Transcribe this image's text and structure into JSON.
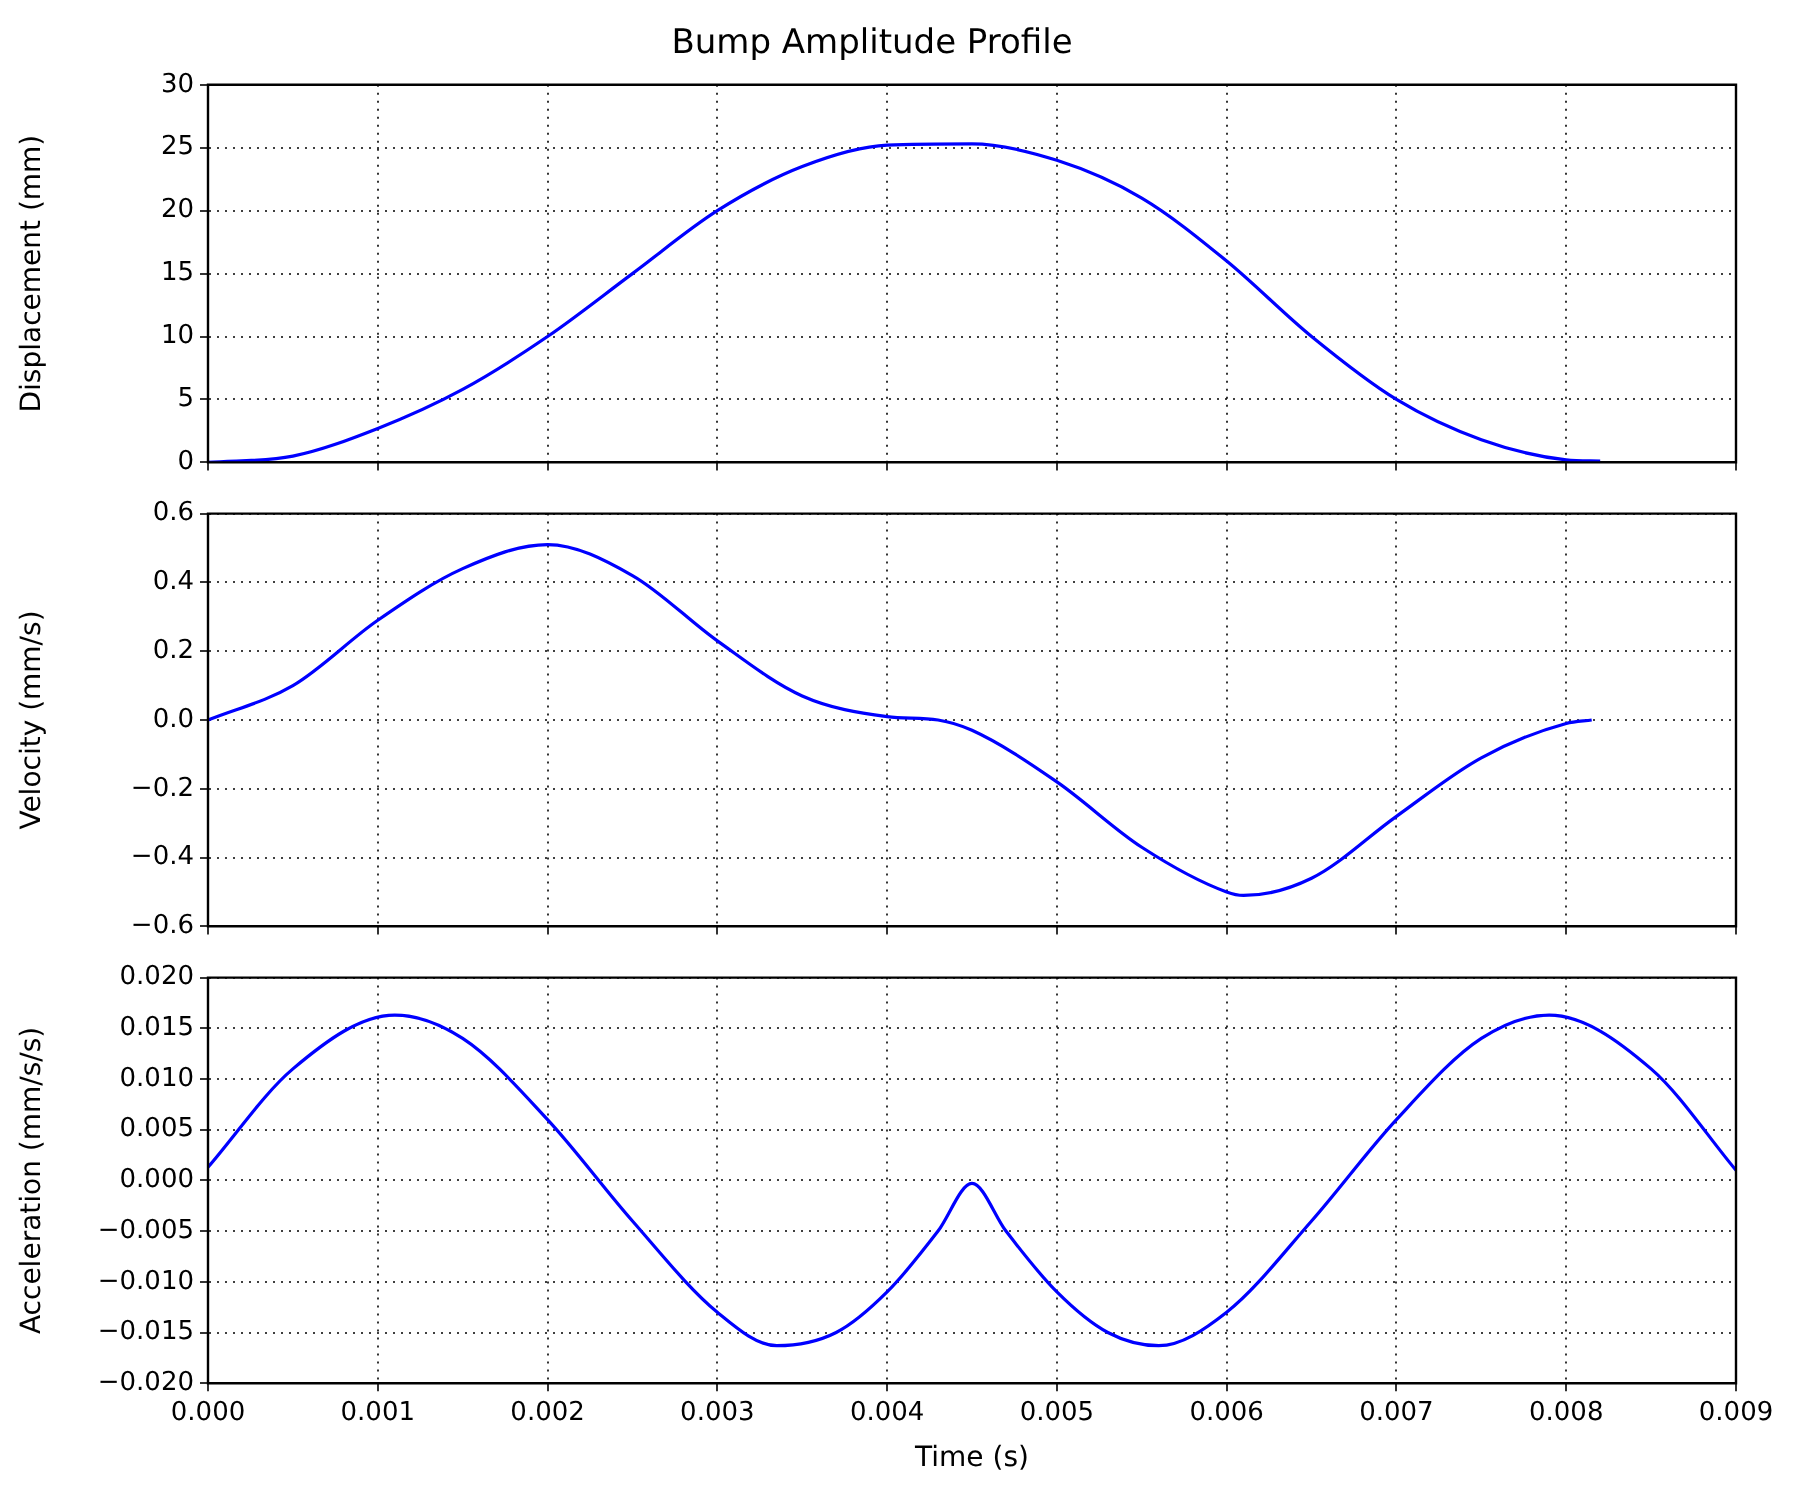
{
  "chart_data": [
    {
      "type": "line",
      "title": "Bump Amplitude Profile",
      "ylabel": "Displacement (mm)",
      "grid": true,
      "marker": "none",
      "line_style": "solid",
      "tick_labels": "y",
      "x": [
        0,
        0.0005,
        0.001,
        0.0015,
        0.002,
        0.0025,
        0.003,
        0.0035,
        0.004,
        0.0045,
        0.005,
        0.0055,
        0.006,
        0.0065,
        0.007,
        0.0075,
        0.008,
        0.0082
      ],
      "series": [
        {
          "color": "#0000ff",
          "values": [
            0,
            0.5,
            2.7,
            5.8,
            10,
            15,
            20,
            23.5,
            25.2,
            25.3,
            24,
            21,
            16,
            10,
            5,
            1.8,
            0.2,
            0.1
          ]
        }
      ],
      "xlim": [
        0,
        0.009
      ],
      "xticks": [
        {
          "value": 0,
          "label": null
        },
        {
          "value": 0.001,
          "label": null
        },
        {
          "value": 0.002,
          "label": null
        },
        {
          "value": 0.003,
          "label": null
        },
        {
          "value": 0.004,
          "label": null
        },
        {
          "value": 0.005,
          "label": null
        },
        {
          "value": 0.006,
          "label": null
        },
        {
          "value": 0.007,
          "label": null
        },
        {
          "value": 0.008,
          "label": null
        },
        {
          "value": 0.009,
          "label": null
        }
      ],
      "ylim": [
        0,
        30
      ],
      "yticks": [
        0,
        5,
        10,
        15,
        20,
        25,
        30
      ]
    },
    {
      "type": "line",
      "ylabel": "Velocity (mm/s)",
      "grid": true,
      "marker": "none",
      "line_style": "solid",
      "tick_labels": "y",
      "x": [
        0,
        0.0005,
        0.001,
        0.0015,
        0.002,
        0.0025,
        0.003,
        0.0035,
        0.004,
        0.0043,
        0.0045,
        0.005,
        0.0055,
        0.006,
        0.0061,
        0.0065,
        0.007,
        0.0075,
        0.008,
        0.00815
      ],
      "series": [
        {
          "color": "#0000ff",
          "values": [
            0,
            0.1,
            0.29,
            0.44,
            0.51,
            0.42,
            0.23,
            0.07,
            0.01,
            0,
            -0.03,
            -0.18,
            -0.37,
            -0.5,
            -0.51,
            -0.46,
            -0.28,
            -0.11,
            -0.01,
            0
          ]
        }
      ],
      "xlim": [
        0,
        0.009
      ],
      "xticks": [
        {
          "value": 0,
          "label": null
        },
        {
          "value": 0.001,
          "label": null
        },
        {
          "value": 0.002,
          "label": null
        },
        {
          "value": 0.003,
          "label": null
        },
        {
          "value": 0.004,
          "label": null
        },
        {
          "value": 0.005,
          "label": null
        },
        {
          "value": 0.006,
          "label": null
        },
        {
          "value": 0.007,
          "label": null
        },
        {
          "value": 0.008,
          "label": null
        },
        {
          "value": 0.009,
          "label": null
        }
      ],
      "ylim": [
        -0.6,
        0.6
      ],
      "yticks": [
        {
          "value": -0.6,
          "label": "−0.6"
        },
        {
          "value": -0.4,
          "label": "−0.4"
        },
        {
          "value": -0.2,
          "label": "−0.2"
        },
        {
          "value": 0,
          "label": "0.0"
        },
        {
          "value": 0.2,
          "label": "0.2"
        },
        {
          "value": 0.4,
          "label": "0.4"
        },
        {
          "value": 0.6,
          "label": "0.6"
        }
      ]
    },
    {
      "type": "line",
      "xlabel": "Time (s)",
      "ylabel": "Acceleration (mm/s/s)",
      "grid": true,
      "marker": "none",
      "line_style": "solid",
      "x": [
        0,
        0.0005,
        0.0011,
        0.0015,
        0.002,
        0.0025,
        0.003,
        0.00335,
        0.0037,
        0.004,
        0.0043,
        0.0045,
        0.0047,
        0.005,
        0.0053,
        0.0056,
        0.006,
        0.0065,
        0.007,
        0.0075,
        0.0079,
        0.0085,
        0.009
      ],
      "series": [
        {
          "color": "#0000ff",
          "values": [
            0.0013,
            0.011,
            0.0163,
            0.014,
            0.006,
            -0.004,
            -0.013,
            -0.0163,
            -0.015,
            -0.011,
            -0.005,
            -0.0003,
            -0.005,
            -0.011,
            -0.015,
            -0.0163,
            -0.013,
            -0.004,
            0.006,
            0.014,
            0.0163,
            0.011,
            0.001
          ]
        }
      ],
      "xlim": [
        0,
        0.009
      ],
      "xticks": [
        {
          "value": 0,
          "label": "0.000"
        },
        {
          "value": 0.001,
          "label": "0.001"
        },
        {
          "value": 0.002,
          "label": "0.002"
        },
        {
          "value": 0.003,
          "label": "0.003"
        },
        {
          "value": 0.004,
          "label": "0.004"
        },
        {
          "value": 0.005,
          "label": "0.005"
        },
        {
          "value": 0.006,
          "label": "0.006"
        },
        {
          "value": 0.007,
          "label": "0.007"
        },
        {
          "value": 0.008,
          "label": "0.008"
        },
        {
          "value": 0.009,
          "label": "0.009"
        }
      ],
      "ylim": [
        -0.02,
        0.02
      ],
      "yticks": [
        {
          "value": -0.02,
          "label": "−0.020"
        },
        {
          "value": -0.015,
          "label": "−0.015"
        },
        {
          "value": -0.01,
          "label": "−0.010"
        },
        {
          "value": -0.005,
          "label": "−0.005"
        },
        {
          "value": 0,
          "label": "0.000"
        },
        {
          "value": 0.005,
          "label": "0.005"
        },
        {
          "value": 0.01,
          "label": "0.010"
        },
        {
          "value": 0.015,
          "label": "0.015"
        },
        {
          "value": 0.02,
          "label": "0.020"
        }
      ]
    }
  ]
}
